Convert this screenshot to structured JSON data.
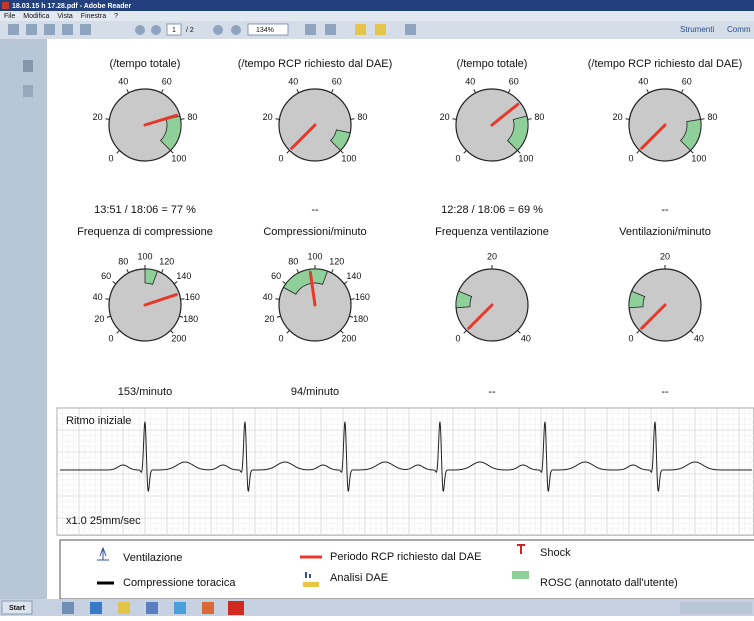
{
  "window": {
    "title": "18.03.15 h 17.28.pdf - Adobe Reader",
    "menu": [
      "File",
      "Modifica",
      "Vista",
      "Finestra",
      "?"
    ]
  },
  "toolbar": {
    "page": "1",
    "pages": "/ 2",
    "zoom": "134%",
    "tools": "Strumenti",
    "comment": "Comm"
  },
  "gauges": [
    {
      "title": "(/tempo totale)",
      "ticks": [
        0,
        20,
        40,
        60,
        80,
        100
      ],
      "needle": 77,
      "target": [
        78,
        100
      ],
      "caption": "13:51 / 18:06 = 77 %"
    },
    {
      "title": "(/tempo RCP richiesto dal DAE)",
      "ticks": [
        0,
        20,
        40,
        60,
        80,
        100
      ],
      "needle": 0,
      "target": [
        88,
        100
      ],
      "caption": "--"
    },
    {
      "title": "(/tempo totale)",
      "ticks": [
        0,
        20,
        40,
        60,
        80,
        100
      ],
      "needle": 69,
      "target": [
        78,
        100
      ],
      "caption": "12:28 / 18:06 = 69 %"
    },
    {
      "title": "(/tempo RCP richiesto dal DAE)",
      "ticks": [
        0,
        20,
        40,
        60,
        80,
        100
      ],
      "needle": 0,
      "target": [
        80,
        100
      ],
      "caption": "--"
    },
    {
      "title": "Frequenza di compressione",
      "ticks": [
        0,
        20,
        40,
        60,
        80,
        100,
        120,
        140,
        160,
        180,
        200
      ],
      "needle": 153,
      "target": [
        100,
        115
      ],
      "caption": "153/minuto"
    },
    {
      "title": "Compressioni/minuto",
      "ticks": [
        0,
        20,
        40,
        60,
        80,
        100,
        120,
        140,
        160,
        180,
        200
      ],
      "needle": 94,
      "target": [
        55,
        115
      ],
      "caption": "94/minuto"
    },
    {
      "title": "Frequenza ventilazione",
      "ticks": [
        0,
        20,
        40
      ],
      "needle": 0,
      "target": [
        6,
        10
      ],
      "caption": "--"
    },
    {
      "title": "Ventilazioni/minuto",
      "ticks": [
        0,
        20,
        40
      ],
      "needle": 0,
      "target": [
        6,
        10
      ],
      "caption": "--"
    }
  ],
  "ecg": {
    "label": "Ritmo iniziale",
    "speed": "x1.0 25mm/sec"
  },
  "legend": [
    "Ventilazione",
    "Periodo RCP richiesto dal DAE",
    "Shock",
    "Compressione toracica",
    "Analisi DAE",
    "ROSC (annotato dall'utente)"
  ],
  "taskbar": {
    "start": "Start"
  }
}
